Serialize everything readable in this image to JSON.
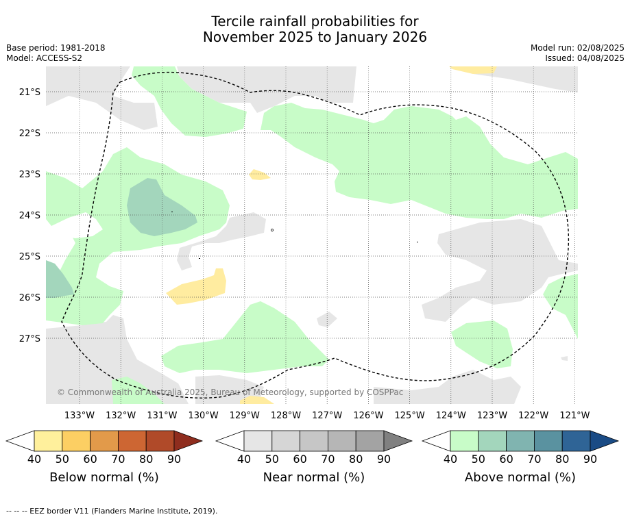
{
  "title": {
    "line1": "Tercile rainfall probabilities for",
    "line2": "November 2025 to January 2026"
  },
  "meta": {
    "base_period": "Base period: 1981-2018",
    "model": "Model: ACCESS-S2",
    "model_run": "Model run: 02/08/2025",
    "issued": "Issued: 04/08/2025"
  },
  "map": {
    "lat_labels": [
      "21°S",
      "22°S",
      "23°S",
      "24°S",
      "25°S",
      "26°S",
      "27°S"
    ],
    "lon_labels": [
      "133°W",
      "132°W",
      "131°W",
      "130°W",
      "129°W",
      "128°W",
      "127°W",
      "126°W",
      "125°W",
      "124°W",
      "123°W",
      "122°W",
      "121°W"
    ],
    "copyright": "© Commonwealth of Australia 2025, Bureau of Meteorology, supported by COSPPac",
    "colors": {
      "near_normal_40": "#e6e6e6",
      "above_40": "#c8fcc8",
      "above_50": "#a3d6bc",
      "below_40": "#ffeca0",
      "eez_line": "#000000"
    }
  },
  "colorbars": [
    {
      "title": "Below normal (%)",
      "ticks": [
        "40",
        "50",
        "60",
        "70",
        "80",
        "90"
      ],
      "colors": [
        "#fff09c",
        "#fccf63",
        "#e29a4a",
        "#cd6633",
        "#b04a29",
        "#8f2d1e"
      ]
    },
    {
      "title": "Near normal (%)",
      "ticks": [
        "40",
        "50",
        "60",
        "70",
        "80",
        "90"
      ],
      "colors": [
        "#e6e6e6",
        "#d6d6d6",
        "#c6c6c6",
        "#b6b6b6",
        "#a3a3a3",
        "#808080"
      ]
    },
    {
      "title": "Above normal (%)",
      "ticks": [
        "40",
        "50",
        "60",
        "70",
        "80",
        "90"
      ],
      "colors": [
        "#c8fcc8",
        "#a3d6bc",
        "#80b4b0",
        "#5a92a0",
        "#2f6496",
        "#1a4b85"
      ]
    }
  ],
  "footnote": "--  --  -- EEZ border V11 (Flanders Marine Institute, 2019)."
}
